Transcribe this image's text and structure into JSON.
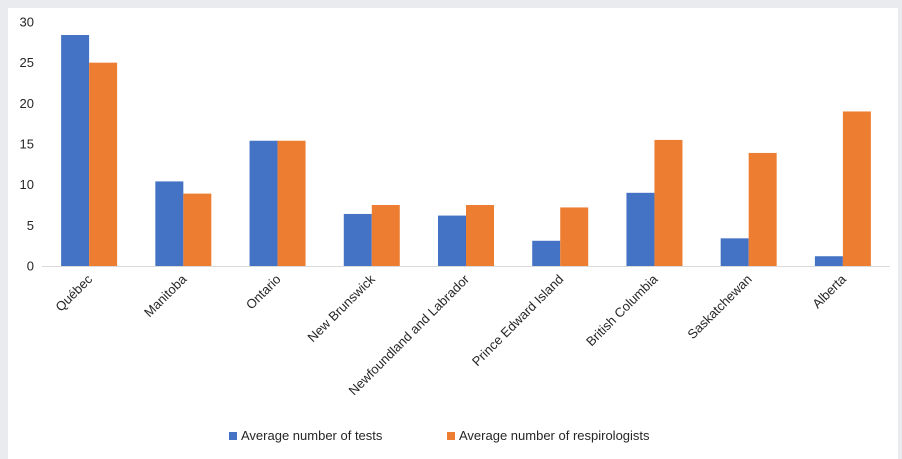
{
  "chart_data": {
    "type": "bar",
    "categories": [
      "Québec",
      "Manitoba",
      "Ontario",
      "New Brunswick",
      "Newfoundland and Labrador",
      "Prince Edward Island",
      "British Columbia",
      "Saskatchewan",
      "Alberta"
    ],
    "series": [
      {
        "name": "Average number of tests",
        "color": "#4472c4",
        "values": [
          28.4,
          10.4,
          15.4,
          6.4,
          6.2,
          3.1,
          9.0,
          3.4,
          1.2
        ]
      },
      {
        "name": "Average number of respirologists",
        "color": "#ed7d31",
        "values": [
          25.0,
          8.9,
          15.4,
          7.5,
          7.5,
          7.2,
          15.5,
          13.9,
          19.0
        ]
      }
    ],
    "ylim": [
      0,
      30
    ],
    "yticks": [
      "0",
      "5",
      "10",
      "15",
      "20",
      "25",
      "30"
    ],
    "grid": false,
    "legend_position": "bottom"
  }
}
